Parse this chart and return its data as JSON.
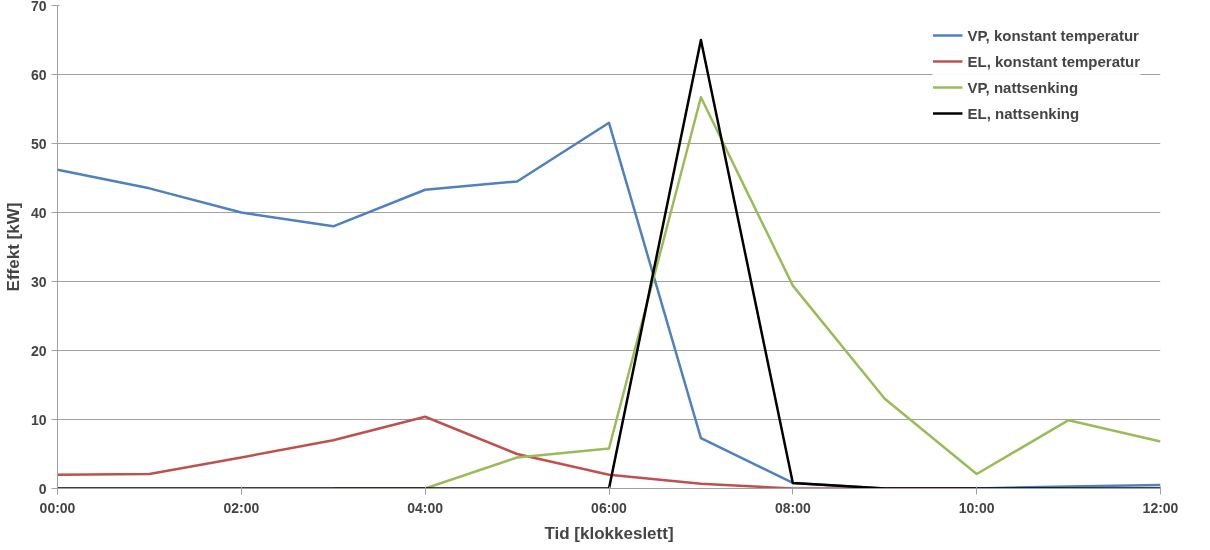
{
  "chart_data": {
    "type": "line",
    "xlabel": "Tid [klokkeslett]",
    "ylabel": "Effekt [kW]",
    "x": [
      0,
      1,
      2,
      3,
      4,
      5,
      6,
      7,
      8,
      9,
      10,
      11,
      12
    ],
    "xlim": [
      0,
      12
    ],
    "xticks": [
      {
        "value": 0,
        "label": "00:00"
      },
      {
        "value": 2,
        "label": "02:00"
      },
      {
        "value": 4,
        "label": "04:00"
      },
      {
        "value": 6,
        "label": "06:00"
      },
      {
        "value": 8,
        "label": "08:00"
      },
      {
        "value": 10,
        "label": "10:00"
      },
      {
        "value": 12,
        "label": "12:00"
      }
    ],
    "ylim": [
      0,
      70
    ],
    "yticks": [
      0,
      10,
      20,
      30,
      40,
      50,
      60,
      70
    ],
    "grid": "y",
    "legend": "top right",
    "marker": "none",
    "line_style": "solid",
    "series": [
      {
        "name": "VP, konstant temperatur",
        "color": "#4f81bd",
        "values": [
          46.2,
          43.5,
          40,
          38,
          43.3,
          44.5,
          53,
          7.3,
          0.8,
          0,
          0,
          0.3,
          0.5
        ]
      },
      {
        "name": "EL, konstant temperatur",
        "color": "#c0504d",
        "values": [
          2,
          2.1,
          4.5,
          7,
          10.4,
          5,
          2,
          0.7,
          0,
          0,
          0,
          null,
          null
        ]
      },
      {
        "name": "VP, nattsenking",
        "color": "#9bbb59",
        "values": [
          null,
          null,
          null,
          0,
          0,
          4.5,
          5.8,
          56.7,
          29.4,
          13,
          2.1,
          9.9,
          6.8
        ]
      },
      {
        "name": "EL, nattsenking",
        "color": "#000000",
        "values": [
          0,
          0,
          0,
          0,
          0,
          0,
          0,
          65,
          0.8,
          0,
          0,
          0,
          0
        ]
      }
    ]
  }
}
